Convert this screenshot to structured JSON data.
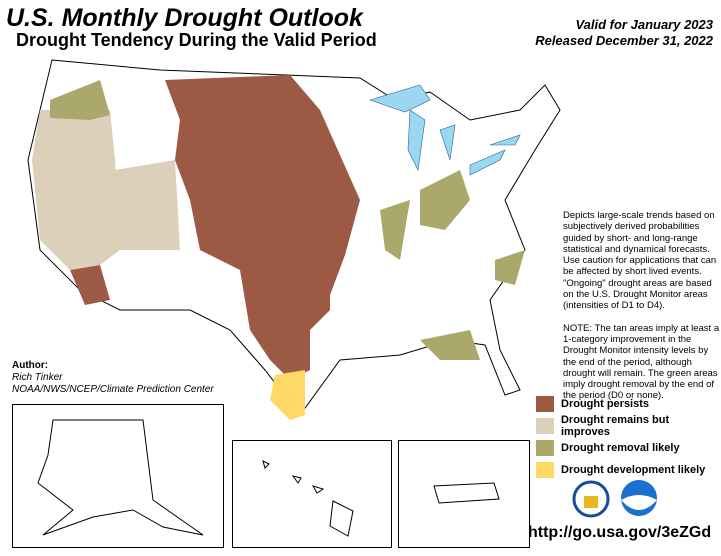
{
  "header": {
    "title": "U.S. Monthly Drought Outlook",
    "subtitle": "Drought Tendency During the Valid Period",
    "valid": "Valid for January 2023",
    "released": "Released December 31, 2022"
  },
  "description": [
    "Depicts large-scale trends based on subjectively derived probabilities guided by short- and long-range statistical and dynamical forecasts. Use caution for applications that can be affected by short lived events. \"Ongoing\" drought areas are based on the U.S. Drought Monitor areas (intensities of D1 to D4).",
    "NOTE: The tan areas imply at least a 1-category improvement in the Drought Monitor intensity levels by the end of the period, although drought will remain. The green areas imply drought removal by the end of the period (D0 or none)."
  ],
  "author": {
    "label": "Author:",
    "name": "Rich Tinker",
    "org": "NOAA/NWS/NCEP/Climate Prediction Center"
  },
  "legend": [
    {
      "label": "Drought persists",
      "color": "#9c5a45"
    },
    {
      "label": "Drought remains but improves",
      "color": "#ddd0bb"
    },
    {
      "label": "Drought removal likely",
      "color": "#aaa86a"
    },
    {
      "label": "Drought development likely",
      "color": "#ffd966"
    }
  ],
  "colors": {
    "water": "#99d8f0"
  },
  "insets": [
    "Alaska",
    "Hawaii",
    "Puerto Rico"
  ],
  "logos": [
    "Department of Commerce seal",
    "NOAA"
  ],
  "url": "http://go.usa.gov/3eZGd"
}
